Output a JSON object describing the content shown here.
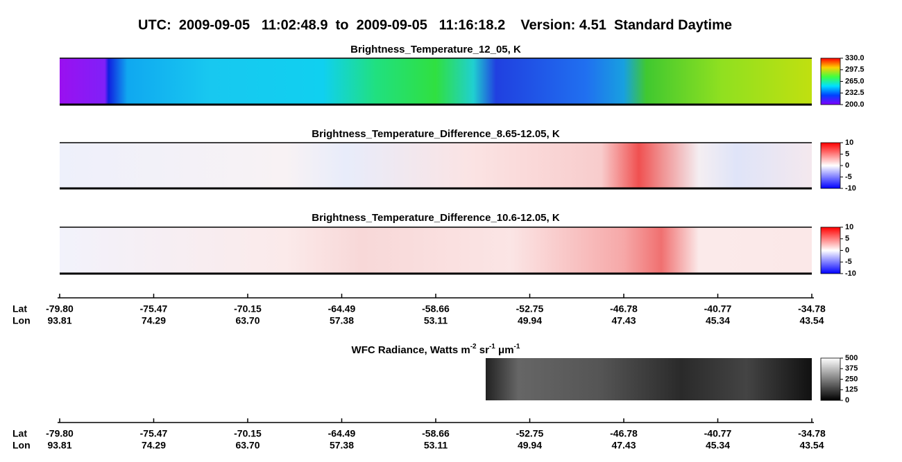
{
  "title": "UTC:  2009-09-05   11:02:48.9  to  2009-09-05   11:16:18.2    Version: 4.51  Standard Daytime",
  "panels": [
    {
      "title": [
        "Brightness_Temperature_12_05, K"
      ],
      "colormap": "rainbow",
      "lim": [
        200,
        330
      ],
      "ticks": [
        {
          "value": 330,
          "label": "330.0"
        },
        {
          "value": 297.5,
          "label": "297.5"
        },
        {
          "value": 265,
          "label": "265.0"
        },
        {
          "value": 232.5,
          "label": "232.5"
        },
        {
          "value": 200,
          "label": "200.0"
        }
      ]
    },
    {
      "title": [
        "Brightness_Temperature_Difference_8.65-12.05, K"
      ],
      "colormap": "diverging",
      "lim": [
        -10,
        10
      ],
      "ticks": [
        10,
        5,
        0,
        -5,
        -10
      ]
    },
    {
      "title": [
        "Brightness_Temperature_Difference_10.6-12.05, K"
      ],
      "colormap": "diverging",
      "lim": [
        -10,
        10
      ],
      "ticks": [
        10,
        5,
        0,
        -5,
        -10
      ]
    },
    {
      "title": [
        "WFC Radiance, Watts m",
        "-2",
        " sr",
        "-1",
        " μm",
        "-1"
      ],
      "colormap": "gray",
      "lim": [
        0,
        500
      ],
      "ticks": [
        500,
        375,
        250,
        125,
        0
      ]
    }
  ],
  "axes": [
    {
      "lat_name": "Lat",
      "lon_name": "Lon",
      "lat": [
        "-79.80",
        "-75.47",
        "-70.15",
        "-64.49",
        "-58.66",
        "-52.75",
        "-46.78",
        "-40.77",
        "-34.78"
      ],
      "lon": [
        "93.81",
        "74.29",
        "63.70",
        "57.38",
        "53.11",
        "49.94",
        "47.43",
        "45.34",
        "43.54"
      ]
    },
    {
      "lat_name": "Lat",
      "lon_name": "Lon",
      "lat": [
        "-79.80",
        "-75.47",
        "-70.15",
        "-64.49",
        "-58.66",
        "-52.75",
        "-46.78",
        "-40.77",
        "-34.78"
      ],
      "lon": [
        "93.81",
        "74.29",
        "63.70",
        "57.38",
        "53.11",
        "49.94",
        "47.43",
        "45.34",
        "43.54"
      ]
    }
  ]
}
